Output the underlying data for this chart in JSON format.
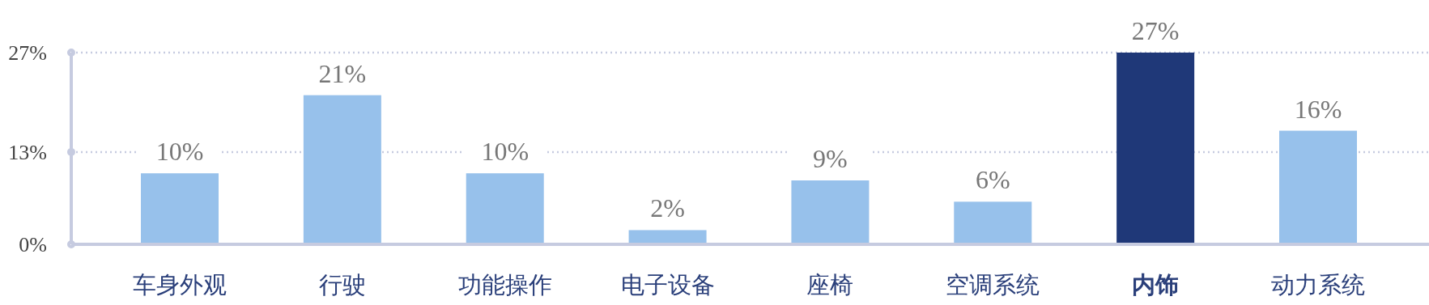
{
  "chart_data": {
    "type": "bar",
    "categories": [
      "车身外观",
      "行驶",
      "功能操作",
      "电子设备",
      "座椅",
      "空调系统",
      "**内饰**",
      "动力系统"
    ],
    "values": [
      10,
      21,
      10,
      2,
      9,
      6,
      27,
      16
    ],
    "colors": [
      "#97c1eb",
      "#97c1eb",
      "#97c1eb",
      "#97c1eb",
      "#97c1eb",
      "#97c1eb",
      "#1f3878",
      "#97c1eb"
    ],
    "value_labels": [
      "10%",
      "21%",
      "10%",
      "2%",
      "9%",
      "6%",
      "27%",
      "16%"
    ],
    "ylim": [
      0,
      27
    ],
    "yticks": [
      {
        "value": 0,
        "label": "0%"
      },
      {
        "value": 13,
        "label": "13%"
      },
      {
        "value": 27,
        "label": "27%"
      }
    ],
    "grid": "y"
  }
}
